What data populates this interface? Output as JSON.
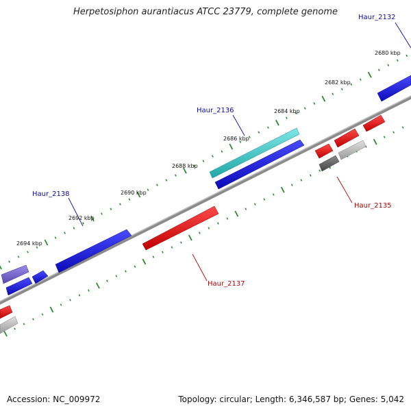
{
  "title": "Herpetosiphon aurantiacus ATCC 23779, complete genome",
  "footer": {
    "accession": "Accession: NC_009972",
    "summary": "Topology: circular; Length: 6,346,587 bp; Genes: 5,042"
  },
  "colors": {
    "backbone": "#8a8a8a",
    "tick": "#2a8a2a",
    "forward_gene": "#1414d8",
    "reverse_gene": "#e01212",
    "highlight_gene": "#3cc8c8",
    "purple_gene": "#7060c8",
    "gray_gene": "#b8b8b8",
    "dark_gray_gene": "#666666",
    "forward_label": "#0a0aa0",
    "reverse_label": "#b00000"
  },
  "scale_labels": [
    "2680 kbp",
    "2682 kbp",
    "2684 kbp",
    "2686 kbp",
    "2688 kbp",
    "2690 kbp",
    "2692 kbp",
    "2694 kbp"
  ],
  "gene_labels": [
    {
      "id": "Haur_2132",
      "strand": "forward"
    },
    {
      "id": "Haur_2136",
      "strand": "forward"
    },
    {
      "id": "Haur_2138",
      "strand": "forward"
    },
    {
      "id": "Haur_2135",
      "strand": "reverse"
    },
    {
      "id": "Haur_2137",
      "strand": "reverse"
    }
  ]
}
